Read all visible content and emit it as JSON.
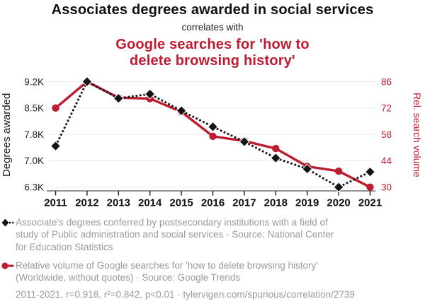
{
  "header": {
    "title": "Associates degrees awarded in social services",
    "subtitle": "correlates with",
    "secondary_title": "Google searches for 'how to\ndelete browsing history'"
  },
  "colors": {
    "red": "#bf1b30",
    "black": "#141414",
    "legend_text": "#9a9a9a",
    "gridline": "#e9e9e9"
  },
  "chart_data": {
    "type": "line",
    "x": [
      2011,
      2012,
      2013,
      2014,
      2015,
      2016,
      2017,
      2018,
      2019,
      2020,
      2021
    ],
    "series": [
      {
        "id": "degrees",
        "name": "Associates degrees awarded in social services",
        "axis": "left",
        "marker": "diamond",
        "line_style": "dotted",
        "color": "black",
        "z": 2,
        "values": [
          7430,
          9200,
          8740,
          8860,
          8400,
          7960,
          7550,
          7100,
          6800,
          6300,
          6720
        ]
      },
      {
        "id": "searches",
        "name": "Google searches for 'how to delete browsing history'",
        "axis": "right",
        "marker": "circle",
        "line_style": "solid",
        "color": "red",
        "z": 1,
        "values": [
          72,
          86,
          77.5,
          77,
          70,
          57,
          54.5,
          50.5,
          41,
          38.5,
          30
        ]
      }
    ],
    "left_axis": {
      "label": "Degrees awarded",
      "min": 6300,
      "max": 9200,
      "ticks": [
        "9.2K",
        "8.5K",
        "7.8K",
        "7.0K",
        "6.3K"
      ]
    },
    "right_axis": {
      "label": "Rel. search volume",
      "min": 30,
      "max": 86,
      "ticks": [
        "86",
        "72",
        "58",
        "44",
        "30"
      ]
    },
    "grid": "horizontal",
    "legend_position": "bottom"
  },
  "legend": {
    "degrees": "Associate's degrees conferred by postsecondary institutions with a field of\nstudy of Public administration and social services · Source: National Center\nfor Education Statistics",
    "searches": "Relative volume of Google searches for 'how to delete browsing history'\n(Worldwide, without quotes) · Source: Google Trends"
  },
  "footer": {
    "stats": "2011-2021, r=0.918, r²=0.842, p<0.01 · tylervigen.com/spurious/correlation/2739"
  }
}
